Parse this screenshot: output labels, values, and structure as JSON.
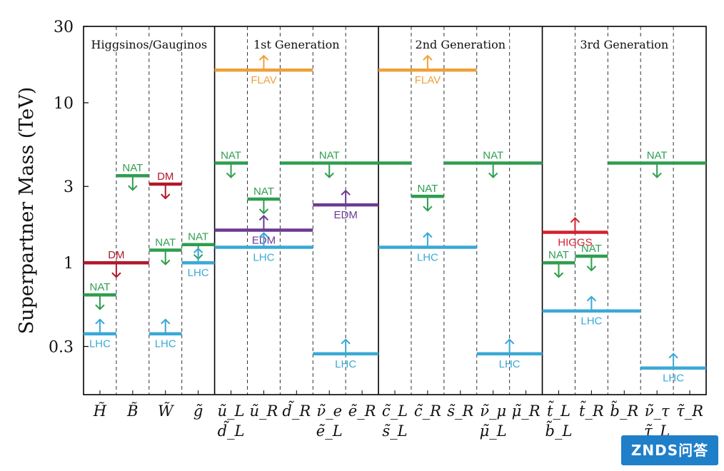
{
  "chart_data": {
    "type": "range-bar",
    "ylabel": "Superpartner Mass (TeV)",
    "yscale": "log",
    "ylim": [
      0.15,
      30
    ],
    "yticks": [
      {
        "value": 30,
        "label": "30"
      },
      {
        "value": 10,
        "label": "10"
      },
      {
        "value": 3,
        "label": "3"
      },
      {
        "value": 1,
        "label": "1"
      },
      {
        "value": 0.3,
        "label": "0.3"
      }
    ],
    "groups": [
      {
        "name": "Higgsinos/Gauginos",
        "start": 0,
        "end": 4
      },
      {
        "name": "1st Generation",
        "start": 4,
        "end": 9
      },
      {
        "name": "2nd Generation",
        "start": 9,
        "end": 14
      },
      {
        "name": "3rd Generation",
        "start": 14,
        "end": 19
      }
    ],
    "columns": [
      {
        "l1": "H̃",
        "l2": ""
      },
      {
        "l1": "B̃",
        "l2": ""
      },
      {
        "l1": "W̃",
        "l2": ""
      },
      {
        "l1": "g̃",
        "l2": ""
      },
      {
        "l1": "ũ_L",
        "l2": "d̃_L"
      },
      {
        "l1": "ũ_R",
        "l2": ""
      },
      {
        "l1": "d̃_R",
        "l2": ""
      },
      {
        "l1": "ν̃_e",
        "l2": "ẽ_L"
      },
      {
        "l1": "ẽ_R",
        "l2": ""
      },
      {
        "l1": "c̃_L",
        "l2": "s̃_L"
      },
      {
        "l1": "c̃_R",
        "l2": ""
      },
      {
        "l1": "s̃_R",
        "l2": ""
      },
      {
        "l1": "ν̃_μ",
        "l2": "μ̃_L"
      },
      {
        "l1": "μ̃_R",
        "l2": ""
      },
      {
        "l1": "t̃_L",
        "l2": "b̃_L"
      },
      {
        "l1": "t̃_R",
        "l2": ""
      },
      {
        "l1": "b̃_R",
        "l2": ""
      },
      {
        "l1": "ν̃_τ",
        "l2": "τ̃_L"
      },
      {
        "l1": "τ̃_R",
        "l2": ""
      }
    ],
    "colors": {
      "NAT": "#2e9e4f",
      "LHC": "#3aa9d6",
      "DM": "#b0182a",
      "FLAV": "#eea03a",
      "EDM": "#6b3a94",
      "HIGGS": "#d3202f"
    },
    "constraints": [
      {
        "label": "LHC",
        "from": 0,
        "to": 1,
        "value": 0.36,
        "direction": "up"
      },
      {
        "label": "NAT",
        "from": 0,
        "to": 1,
        "value": 0.63,
        "direction": "down"
      },
      {
        "label": "DM",
        "from": 0,
        "to": 2,
        "value": 1.0,
        "direction": "down"
      },
      {
        "label": "NAT",
        "from": 1,
        "to": 2,
        "value": 3.5,
        "direction": "down"
      },
      {
        "label": "DM",
        "from": 2,
        "to": 3,
        "value": 3.1,
        "direction": "down"
      },
      {
        "label": "NAT",
        "from": 2,
        "to": 3,
        "value": 1.2,
        "direction": "down"
      },
      {
        "label": "LHC",
        "from": 2,
        "to": 3,
        "value": 0.36,
        "direction": "up"
      },
      {
        "label": "NAT",
        "from": 3,
        "to": 4,
        "value": 1.3,
        "direction": "down"
      },
      {
        "label": "LHC",
        "from": 3,
        "to": 4,
        "value": 1.0,
        "direction": "up"
      },
      {
        "label": "FLAV",
        "from": 4,
        "to": 7,
        "value": 16,
        "direction": "up"
      },
      {
        "label": "NAT",
        "from": 4,
        "to": 5,
        "value": 4.2,
        "direction": "down"
      },
      {
        "label": "NAT",
        "from": 5,
        "to": 6,
        "value": 2.5,
        "direction": "down"
      },
      {
        "label": "EDM",
        "from": 4,
        "to": 7,
        "value": 1.6,
        "direction": "up"
      },
      {
        "label": "LHC",
        "from": 4,
        "to": 7,
        "value": 1.25,
        "direction": "up"
      },
      {
        "label": "NAT",
        "from": 6,
        "to": 9,
        "value": 4.2,
        "direction": "down"
      },
      {
        "label": "EDM",
        "from": 7,
        "to": 9,
        "value": 2.3,
        "direction": "up"
      },
      {
        "label": "LHC",
        "from": 7,
        "to": 9,
        "value": 0.27,
        "direction": "up"
      },
      {
        "label": "FLAV",
        "from": 9,
        "to": 12,
        "value": 16,
        "direction": "up"
      },
      {
        "label": "NAT",
        "from": 9,
        "to": 10,
        "value": 4.2,
        "direction": "none"
      },
      {
        "label": "NAT",
        "from": 10,
        "to": 11,
        "value": 2.6,
        "direction": "down"
      },
      {
        "label": "LHC",
        "from": 9,
        "to": 12,
        "value": 1.25,
        "direction": "up"
      },
      {
        "label": "NAT",
        "from": 11,
        "to": 14,
        "value": 4.2,
        "direction": "down"
      },
      {
        "label": "LHC",
        "from": 12,
        "to": 14,
        "value": 0.27,
        "direction": "up"
      },
      {
        "label": "HIGGS",
        "from": 14,
        "to": 16,
        "value": 1.55,
        "direction": "up"
      },
      {
        "label": "NAT",
        "from": 14,
        "to": 15,
        "value": 1.0,
        "direction": "down"
      },
      {
        "label": "NAT",
        "from": 15,
        "to": 16,
        "value": 1.1,
        "direction": "down"
      },
      {
        "label": "LHC",
        "from": 14,
        "to": 17,
        "value": 0.5,
        "direction": "up"
      },
      {
        "label": "NAT",
        "from": 16,
        "to": 19,
        "value": 4.2,
        "direction": "down"
      },
      {
        "label": "LHC",
        "from": 17,
        "to": 19,
        "value": 0.22,
        "direction": "up"
      }
    ]
  },
  "watermark": {
    "text": "ZNDS问答"
  }
}
